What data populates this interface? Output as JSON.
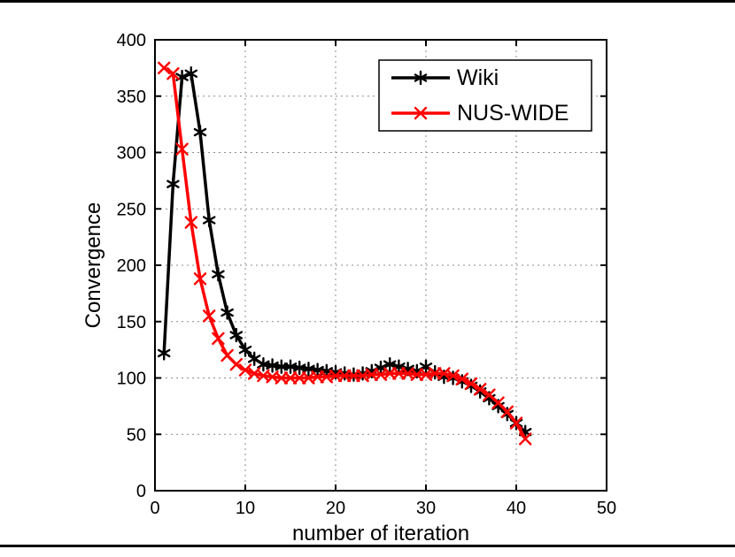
{
  "figure": {
    "background": "#ffffff",
    "frame_color": "#000000"
  },
  "chart_data": {
    "type": "line",
    "title": "",
    "xlabel": "number of iteration",
    "ylabel": "Convergence",
    "xlim": [
      0,
      50
    ],
    "ylim": [
      0,
      400
    ],
    "xticks": [
      0,
      10,
      20,
      30,
      40,
      50
    ],
    "yticks": [
      0,
      50,
      100,
      150,
      200,
      250,
      300,
      350,
      400
    ],
    "grid": true,
    "grid_style": "dashed",
    "legend_position": "top-right",
    "x": [
      1,
      2,
      3,
      4,
      5,
      6,
      7,
      8,
      9,
      10,
      11,
      12,
      13,
      14,
      15,
      16,
      17,
      18,
      19,
      20,
      21,
      22,
      23,
      24,
      25,
      26,
      27,
      28,
      29,
      30,
      31,
      32,
      33,
      34,
      35,
      36,
      37,
      38,
      39,
      40,
      41
    ],
    "series": [
      {
        "name": "Wiki",
        "color": "#000000",
        "marker": "asterisk",
        "values": [
          122,
          272,
          367,
          370,
          318,
          240,
          192,
          158,
          138,
          125,
          117,
          112,
          111,
          110,
          110,
          109,
          108,
          107,
          106,
          105,
          104,
          103,
          104,
          106,
          109,
          112,
          110,
          108,
          106,
          110,
          105,
          101,
          100,
          97,
          93,
          88,
          82,
          75,
          68,
          60,
          52
        ]
      },
      {
        "name": "NUS-WIDE",
        "color": "#ff0000",
        "marker": "x",
        "values": [
          375,
          370,
          303,
          238,
          188,
          155,
          135,
          120,
          112,
          107,
          104,
          102,
          101,
          100,
          100,
          100,
          100,
          101,
          101,
          102,
          102,
          102,
          102,
          103,
          103,
          104,
          104,
          104,
          103,
          103,
          104,
          104,
          102,
          99,
          95,
          90,
          85,
          78,
          70,
          60,
          46
        ]
      }
    ]
  }
}
